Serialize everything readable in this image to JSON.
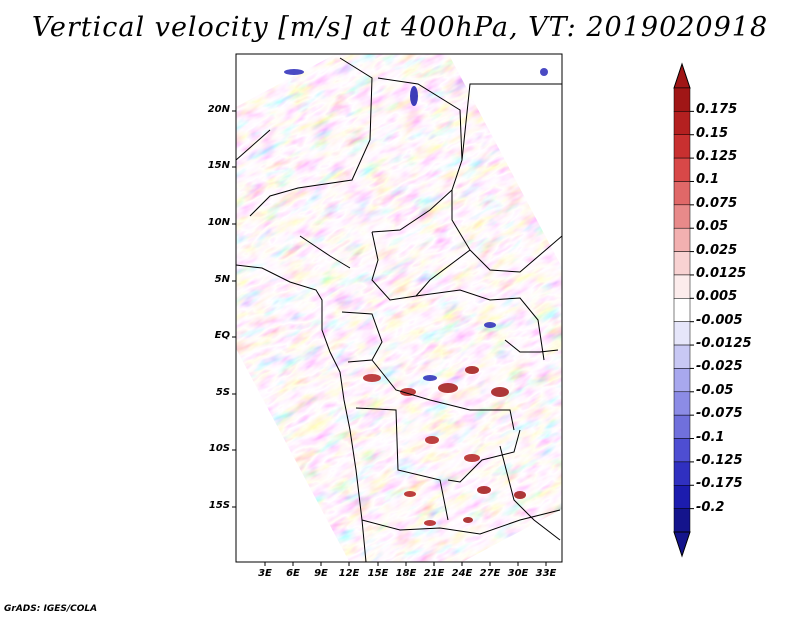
{
  "title": "Vertical velocity [m/s] at 400hPa, VT: 2019020918",
  "credit": "GrADS: IGES/COLA",
  "map": {
    "lat_labels": [
      "20N",
      "15N",
      "10N",
      "5N",
      "EQ",
      "5S",
      "10S",
      "15S"
    ],
    "lon_labels": [
      "3E",
      "6E",
      "9E",
      "12E",
      "15E",
      "18E",
      "21E",
      "24E",
      "27E",
      "30E",
      "33E"
    ]
  },
  "colorbar": {
    "levels": [
      "0.175",
      "0.15",
      "0.125",
      "0.1",
      "0.075",
      "0.05",
      "0.025",
      "0.0125",
      "0.005",
      "-0.005",
      "-0.0125",
      "-0.025",
      "-0.05",
      "-0.075",
      "-0.1",
      "-0.125",
      "-0.175",
      "-0.2"
    ],
    "colors": [
      "#a01616",
      "#b42020",
      "#c83030",
      "#d84848",
      "#e06868",
      "#e88a8a",
      "#f2b0b0",
      "#f8d2d2",
      "#fcecec",
      "#ffffff",
      "#e6e6fa",
      "#c8c8f4",
      "#a8a8ee",
      "#8c8ce6",
      "#7070dc",
      "#4e4ed2",
      "#3030c0",
      "#1c1cae",
      "#14148c"
    ],
    "top_color": "#a01616",
    "bottom_color": "#14148c"
  }
}
